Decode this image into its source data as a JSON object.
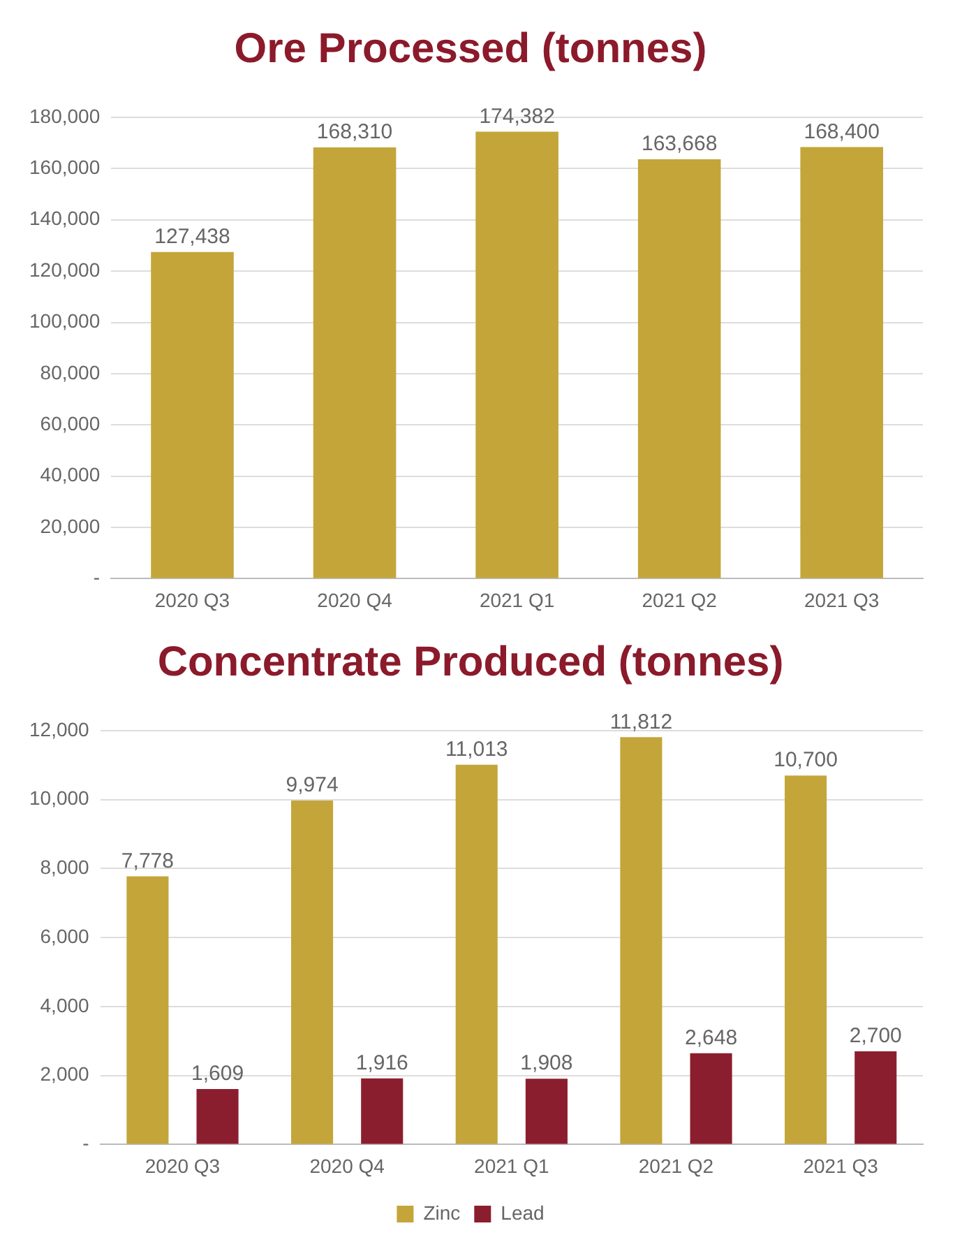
{
  "chart_data": [
    {
      "type": "bar",
      "title": "Ore Processed (tonnes)",
      "categories": [
        "2020 Q3",
        "2020 Q4",
        "2021 Q1",
        "2021 Q2",
        "2021 Q3"
      ],
      "values": [
        127438,
        168310,
        174382,
        163668,
        168400
      ],
      "value_labels": [
        "127,438",
        "168,310",
        "174,382",
        "163,668",
        "168,400"
      ],
      "color": "#c4a53a",
      "ylim": [
        0,
        180000
      ],
      "yticks": [
        {
          "value": 0,
          "label": "-"
        },
        {
          "value": 20000,
          "label": "20,000"
        },
        {
          "value": 40000,
          "label": "40,000"
        },
        {
          "value": 60000,
          "label": "60,000"
        },
        {
          "value": 80000,
          "label": "80,000"
        },
        {
          "value": 100000,
          "label": "100,000"
        },
        {
          "value": 120000,
          "label": "120,000"
        },
        {
          "value": 140000,
          "label": "140,000"
        },
        {
          "value": 160000,
          "label": "160,000"
        },
        {
          "value": 180000,
          "label": "180,000"
        }
      ],
      "grid": "y"
    },
    {
      "type": "bar",
      "title": "Concentrate Produced (tonnes)",
      "categories": [
        "2020 Q3",
        "2020 Q4",
        "2021 Q1",
        "2021 Q2",
        "2021 Q3"
      ],
      "series": [
        {
          "name": "Zinc",
          "color": "#c4a53a",
          "values": [
            7778,
            9974,
            11013,
            11812,
            10700
          ],
          "value_labels": [
            "7,778",
            "9,974",
            "11,013",
            "11,812",
            "10,700"
          ]
        },
        {
          "name": "Lead",
          "color": "#8b1e2e",
          "values": [
            1609,
            1916,
            1908,
            2648,
            2700
          ],
          "value_labels": [
            "1,609",
            "1,916",
            "1,908",
            "2,648",
            "2,700"
          ]
        }
      ],
      "ylim": [
        0,
        12000
      ],
      "yticks": [
        {
          "value": 0,
          "label": "-"
        },
        {
          "value": 2000,
          "label": "2,000"
        },
        {
          "value": 4000,
          "label": "4,000"
        },
        {
          "value": 6000,
          "label": "6,000"
        },
        {
          "value": 8000,
          "label": "8,000"
        },
        {
          "value": 10000,
          "label": "10,000"
        },
        {
          "value": 12000,
          "label": "12,000"
        }
      ],
      "grid": "y",
      "legend": "bottom"
    }
  ]
}
